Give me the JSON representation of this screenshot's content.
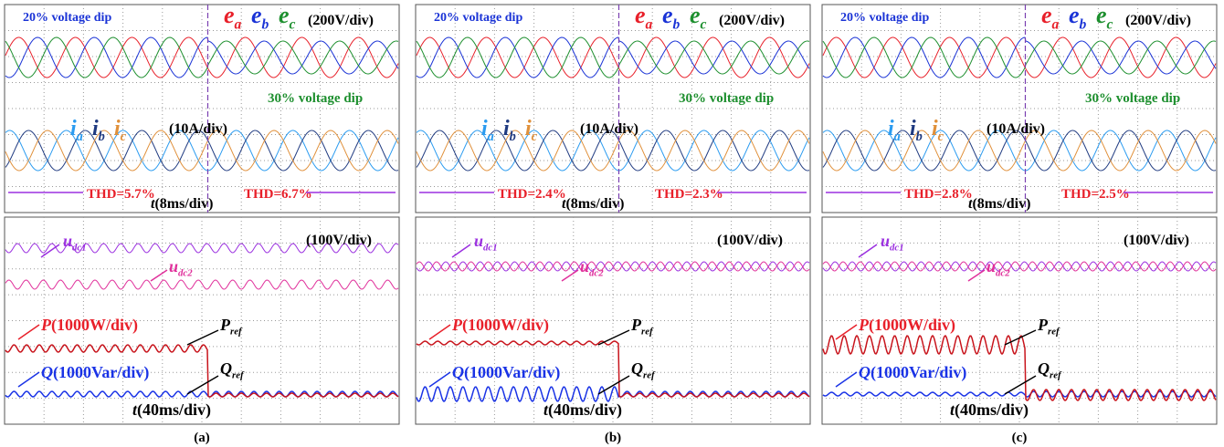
{
  "panels": [
    {
      "caption": "(a)",
      "voltage": {
        "dip_left": "20% voltage dip",
        "labels": [
          {
            "main": "e",
            "sub": "a"
          },
          {
            "main": "e",
            "sub": "b"
          },
          {
            "main": "e",
            "sub": "c"
          }
        ],
        "scale": "(200V/div)",
        "dip_right": "30% voltage dip"
      },
      "current": {
        "labels": [
          {
            "main": "i",
            "sub": "a"
          },
          {
            "main": "i",
            "sub": "b"
          },
          {
            "main": "i",
            "sub": "c"
          }
        ],
        "scale": "(10A/div)",
        "thd_left": "THD=5.7%",
        "thd_right": "THD=6.7%",
        "time": {
          "var": "t",
          "scale": "(8ms/div)"
        }
      },
      "dc": {
        "u1": {
          "main": "u",
          "sub": "dc1"
        },
        "u2": {
          "main": "u",
          "sub": "dc2"
        },
        "scale": "(100V/div)"
      },
      "power": {
        "p": {
          "main": "P",
          "scale": "(1000W/div)"
        },
        "p_ref": {
          "main": "P",
          "sub": "ref"
        },
        "q": {
          "main": "Q",
          "scale": "(1000Var/div)"
        },
        "q_ref": {
          "main": "Q",
          "sub": "ref"
        },
        "time": {
          "var": "t",
          "scale": "(40ms/div)"
        }
      }
    },
    {
      "caption": "(b)",
      "voltage": {
        "dip_left": "20% voltage dip",
        "labels": [
          {
            "main": "e",
            "sub": "a"
          },
          {
            "main": "e",
            "sub": "b"
          },
          {
            "main": "e",
            "sub": "c"
          }
        ],
        "scale": "(200V/div)",
        "dip_right": "30% voltage dip"
      },
      "current": {
        "labels": [
          {
            "main": "i",
            "sub": "a"
          },
          {
            "main": "i",
            "sub": "b"
          },
          {
            "main": "i",
            "sub": "c"
          }
        ],
        "scale": "(10A/div)",
        "thd_left": "THD=2.4%",
        "thd_right": "THD=2.3%",
        "time": {
          "var": "t",
          "scale": "(8ms/div)"
        }
      },
      "dc": {
        "u1": {
          "main": "u",
          "sub": "dc1"
        },
        "u2": {
          "main": "u",
          "sub": "dc2"
        },
        "scale": "(100V/div)"
      },
      "power": {
        "p": {
          "main": "P",
          "scale": "(1000W/div)"
        },
        "p_ref": {
          "main": "P",
          "sub": "ref"
        },
        "q": {
          "main": "Q",
          "scale": "(1000Var/div)"
        },
        "q_ref": {
          "main": "Q",
          "sub": "ref"
        },
        "time": {
          "var": "t",
          "scale": "(40ms/div)"
        }
      }
    },
    {
      "caption": "(c)",
      "voltage": {
        "dip_left": "20% voltage dip",
        "labels": [
          {
            "main": "e",
            "sub": "a"
          },
          {
            "main": "e",
            "sub": "b"
          },
          {
            "main": "e",
            "sub": "c"
          }
        ],
        "scale": "(200V/div)",
        "dip_right": "30% voltage dip"
      },
      "current": {
        "labels": [
          {
            "main": "i",
            "sub": "a"
          },
          {
            "main": "i",
            "sub": "b"
          },
          {
            "main": "i",
            "sub": "c"
          }
        ],
        "scale": "(10A/div)",
        "thd_left": "THD=2.8%",
        "thd_right": "THD=2.5%",
        "time": {
          "var": "t",
          "scale": "(8ms/div)"
        }
      },
      "dc": {
        "u1": {
          "main": "u",
          "sub": "dc1"
        },
        "u2": {
          "main": "u",
          "sub": "dc2"
        },
        "scale": "(100V/div)"
      },
      "power": {
        "p": {
          "main": "P",
          "scale": "(1000W/div)"
        },
        "p_ref": {
          "main": "P",
          "sub": "ref"
        },
        "q": {
          "main": "Q",
          "scale": "(1000Var/div)"
        },
        "q_ref": {
          "main": "Q",
          "sub": "ref"
        },
        "time": {
          "var": "t",
          "scale": "(40ms/div)"
        }
      }
    }
  ]
}
